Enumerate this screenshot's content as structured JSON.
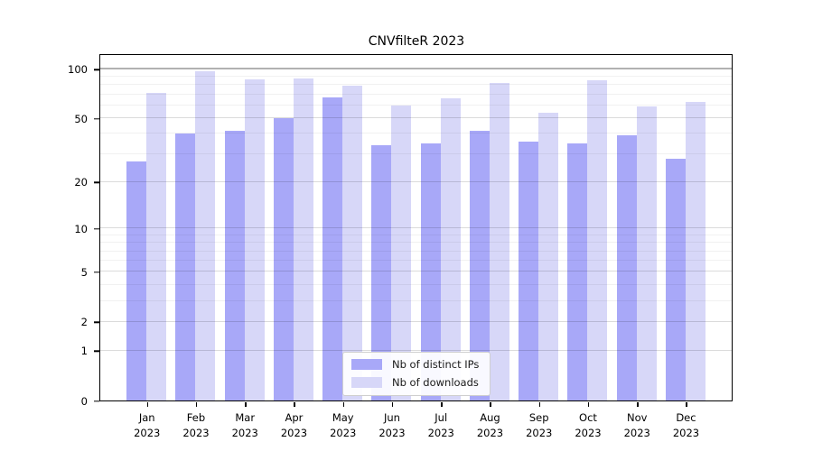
{
  "chart_data": {
    "type": "bar",
    "title": "CNVfilteR 2023",
    "months": [
      "Jan",
      "Feb",
      "Mar",
      "Apr",
      "May",
      "Jun",
      "Jul",
      "Aug",
      "Sep",
      "Oct",
      "Nov",
      "Dec"
    ],
    "year": "2023",
    "series": [
      {
        "name": "Nb of distinct IPs",
        "color": "#a8a8f8",
        "values": [
          27,
          40,
          42,
          50,
          67,
          34,
          35,
          42,
          36,
          35,
          39,
          28
        ]
      },
      {
        "name": "Nb of downloads",
        "color": "#d7d7f8",
        "values": [
          72,
          97,
          87,
          88,
          79,
          60,
          66,
          82,
          54,
          85,
          59,
          63
        ]
      }
    ],
    "yscale": "log1p",
    "y_ticks": [
      0,
      1,
      2,
      5,
      10,
      20,
      50,
      100
    ],
    "y_minor_ticks": [
      3,
      4,
      6,
      7,
      8,
      9,
      30,
      40,
      60,
      70,
      80,
      90
    ],
    "ylim": [
      0,
      122
    ],
    "grid": "horizontal",
    "legend_position": "bottom-center",
    "colors": {
      "axis": "#000000",
      "grid_major": "rgba(0,0,0,0.14)",
      "grid_strong": "rgba(0,0,0,0.30)",
      "grid_minor": "rgba(0,0,0,0.055)"
    }
  }
}
